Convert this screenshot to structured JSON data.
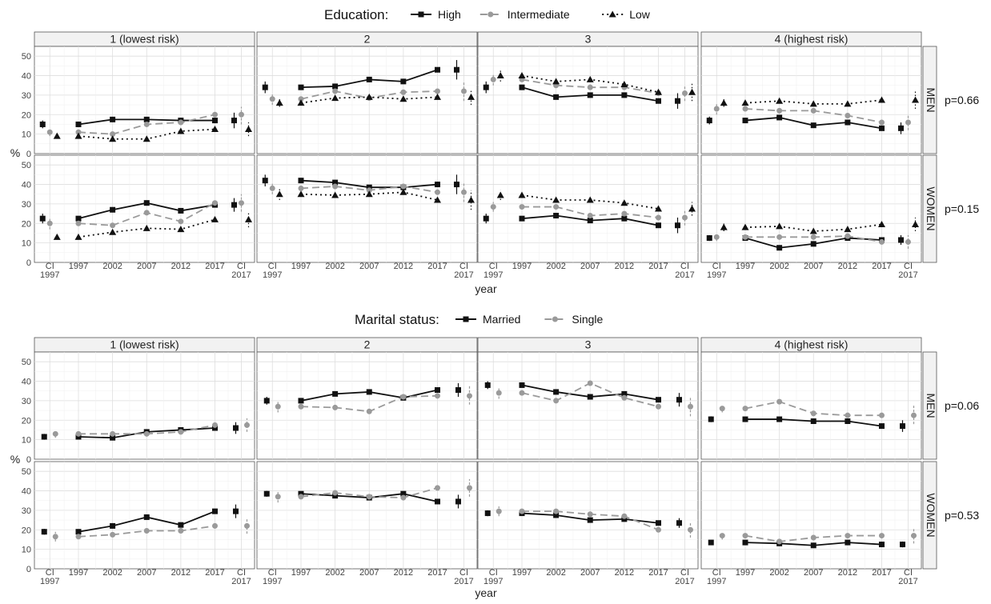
{
  "figures": [
    {
      "legend_title": "Education:",
      "legend_items": [
        "High",
        "Intermediate",
        "Low"
      ],
      "xlabel": "year",
      "ylabel": "%",
      "column_titles": [
        "1 (lowest risk)",
        "2",
        "3",
        "4 (highest risk)"
      ],
      "row_labels": [
        "MEN",
        "WOMEN"
      ],
      "p_values": [
        "p=0.66",
        "p=0.15"
      ]
    },
    {
      "legend_title": "Marital status:",
      "legend_items": [
        "Married",
        "Single"
      ],
      "xlabel": "year",
      "ylabel": "%",
      "column_titles": [
        "1 (lowest risk)",
        "2",
        "3",
        "4 (highest risk)"
      ],
      "row_labels": [
        "MEN",
        "WOMEN"
      ],
      "p_values": [
        "p=0.06",
        "p=0.53"
      ]
    }
  ],
  "axis": {
    "x_ticks": [
      "CI\n1997",
      "1997",
      "2002",
      "2007",
      "2012",
      "2017",
      "CI\n2017"
    ],
    "y_ticks": [
      "0",
      "10",
      "20",
      "30",
      "40",
      "50"
    ],
    "ylim": [
      0,
      55
    ]
  },
  "chart_data": [
    {
      "type": "line",
      "title": "Education",
      "facets": {
        "columns": [
          "1 (lowest risk)",
          "2",
          "3",
          "4 (highest risk)"
        ],
        "rows": [
          "MEN",
          "WOMEN"
        ]
      },
      "x": [
        1997,
        2002,
        2007,
        2012,
        2017
      ],
      "series_names": [
        "High",
        "Intermediate",
        "Low"
      ],
      "series_colors": [
        "#111111",
        "#9a9a9a",
        "#111111"
      ],
      "series_markers": [
        "square",
        "circle",
        "triangle"
      ],
      "series_dash": [
        "",
        "9,5",
        "2,4"
      ],
      "panels": [
        {
          "row": 0,
          "col": 0,
          "series": [
            {
              "values": [
                15,
                17.5,
                17.5,
                17,
                17
              ],
              "ci1997": [
                15,
                13,
                17
              ],
              "ci2017": [
                17,
                13,
                21
              ]
            },
            {
              "values": [
                11,
                10,
                15,
                16,
                20
              ],
              "ci1997": [
                11,
                9,
                13
              ],
              "ci2017": [
                20,
                15,
                24
              ]
            },
            {
              "values": [
                9,
                7.5,
                7.5,
                11.5,
                12.5
              ],
              "ci1997": [
                9,
                8,
                10
              ],
              "ci2017": [
                12.5,
                9,
                16
              ]
            }
          ]
        },
        {
          "row": 0,
          "col": 1,
          "series": [
            {
              "values": [
                34,
                34.5,
                38,
                37,
                43
              ],
              "ci1997": [
                34,
                31,
                37
              ],
              "ci2017": [
                43,
                38,
                48
              ]
            },
            {
              "values": [
                28,
                32,
                28.5,
                31.5,
                32
              ],
              "ci1997": [
                28,
                25,
                31
              ],
              "ci2017": [
                32,
                27,
                37
              ]
            },
            {
              "values": [
                26,
                28.5,
                29,
                28,
                29
              ],
              "ci1997": [
                26,
                24,
                28
              ],
              "ci2017": [
                29,
                25,
                33
              ]
            }
          ]
        },
        {
          "row": 0,
          "col": 2,
          "series": [
            {
              "values": [
                34,
                29,
                30,
                30,
                27
              ],
              "ci1997": [
                34,
                31,
                37
              ],
              "ci2017": [
                27,
                23,
                31
              ]
            },
            {
              "values": [
                38,
                35,
                34,
                34,
                31
              ],
              "ci1997": [
                38,
                35,
                41
              ],
              "ci2017": [
                31,
                27,
                35
              ]
            },
            {
              "values": [
                40,
                37,
                38,
                35.5,
                31.5
              ],
              "ci1997": [
                40,
                37,
                43
              ],
              "ci2017": [
                31.5,
                27,
                36
              ]
            }
          ]
        },
        {
          "row": 0,
          "col": 3,
          "series": [
            {
              "values": [
                17,
                18.5,
                14.5,
                16,
                13
              ],
              "ci1997": [
                17,
                15,
                19
              ],
              "ci2017": [
                13,
                10,
                16
              ]
            },
            {
              "values": [
                23,
                22,
                22,
                19.5,
                16
              ],
              "ci1997": [
                23,
                20,
                26
              ],
              "ci2017": [
                16,
                12,
                20
              ]
            },
            {
              "values": [
                26,
                27,
                25.5,
                25.5,
                27.5
              ],
              "ci1997": [
                26,
                24,
                28
              ],
              "ci2017": [
                27.5,
                23,
                32
              ]
            }
          ]
        },
        {
          "row": 1,
          "col": 0,
          "series": [
            {
              "values": [
                22.5,
                27,
                30.5,
                26.5,
                29.5
              ],
              "ci1997": [
                22.5,
                20,
                25
              ],
              "ci2017": [
                29.5,
                26,
                33
              ]
            },
            {
              "values": [
                20,
                19,
                25.5,
                21,
                30.5
              ],
              "ci1997": [
                20,
                17,
                23
              ],
              "ci2017": [
                30.5,
                26,
                35
              ]
            },
            {
              "values": [
                13,
                15.5,
                17.5,
                17,
                22
              ],
              "ci1997": [
                13,
                12,
                14
              ],
              "ci2017": [
                22,
                18,
                26
              ]
            }
          ]
        },
        {
          "row": 1,
          "col": 1,
          "series": [
            {
              "values": [
                42,
                41,
                38.5,
                38.5,
                40
              ],
              "ci1997": [
                42,
                39,
                45
              ],
              "ci2017": [
                40,
                35,
                45
              ]
            },
            {
              "values": [
                38,
                39,
                37,
                39,
                36
              ],
              "ci1997": [
                38,
                35,
                41
              ],
              "ci2017": [
                36,
                31,
                41
              ]
            },
            {
              "values": [
                35,
                34.5,
                35,
                36,
                32
              ],
              "ci1997": [
                35,
                32,
                38
              ],
              "ci2017": [
                32,
                27,
                37
              ]
            }
          ]
        },
        {
          "row": 1,
          "col": 2,
          "series": [
            {
              "values": [
                22.5,
                24,
                21.5,
                22.5,
                19
              ],
              "ci1997": [
                22.5,
                20,
                25
              ],
              "ci2017": [
                19,
                15,
                23
              ]
            },
            {
              "values": [
                28.5,
                28.5,
                24,
                25,
                23
              ],
              "ci1997": [
                28.5,
                26,
                31
              ],
              "ci2017": [
                23,
                19,
                27
              ]
            },
            {
              "values": [
                34.5,
                32,
                32,
                30.5,
                27.5
              ],
              "ci1997": [
                34.5,
                32,
                37
              ],
              "ci2017": [
                27.5,
                24,
                31
              ]
            }
          ]
        },
        {
          "row": 1,
          "col": 3,
          "series": [
            {
              "values": [
                12.5,
                7.5,
                9.5,
                12.5,
                11.5
              ],
              "ci1997": [
                12.5,
                11,
                14
              ],
              "ci2017": [
                11.5,
                9,
                14
              ]
            },
            {
              "values": [
                13,
                13,
                13,
                13.5,
                10.5
              ],
              "ci1997": [
                13,
                11,
                15
              ],
              "ci2017": [
                10.5,
                7,
                14
              ]
            },
            {
              "values": [
                18,
                18.5,
                16,
                17,
                19.5
              ],
              "ci1997": [
                18,
                16,
                20
              ],
              "ci2017": [
                19.5,
                16,
                23
              ]
            }
          ]
        }
      ]
    },
    {
      "type": "line",
      "title": "Marital status",
      "facets": {
        "columns": [
          "1 (lowest risk)",
          "2",
          "3",
          "4 (highest risk)"
        ],
        "rows": [
          "MEN",
          "WOMEN"
        ]
      },
      "x": [
        1997,
        2002,
        2007,
        2012,
        2017
      ],
      "series_names": [
        "Married",
        "Single"
      ],
      "series_colors": [
        "#111111",
        "#9a9a9a"
      ],
      "series_markers": [
        "square",
        "circle"
      ],
      "series_dash": [
        "",
        "9,5"
      ],
      "panels": [
        {
          "row": 0,
          "col": 0,
          "series": [
            {
              "values": [
                11.5,
                11,
                14,
                15,
                16
              ],
              "ci1997": [
                11.5,
                10,
                13
              ],
              "ci2017": [
                16,
                13,
                19
              ]
            },
            {
              "values": [
                13,
                13,
                13,
                14,
                17.5
              ],
              "ci1997": [
                13,
                11,
                15
              ],
              "ci2017": [
                17.5,
                14,
                21
              ]
            }
          ]
        },
        {
          "row": 0,
          "col": 1,
          "series": [
            {
              "values": [
                30,
                33.5,
                34.5,
                31.5,
                35.5
              ],
              "ci1997": [
                30,
                28,
                32
              ],
              "ci2017": [
                35.5,
                32,
                39
              ]
            },
            {
              "values": [
                27,
                26.5,
                24.5,
                32,
                32.5
              ],
              "ci1997": [
                27,
                24,
                30
              ],
              "ci2017": [
                32.5,
                28,
                38
              ]
            }
          ]
        },
        {
          "row": 0,
          "col": 2,
          "series": [
            {
              "values": [
                38,
                34.5,
                32,
                33.5,
                30.5
              ],
              "ci1997": [
                38,
                36,
                40
              ],
              "ci2017": [
                30.5,
                27,
                34
              ]
            },
            {
              "values": [
                34,
                30,
                39,
                31.5,
                27
              ],
              "ci1997": [
                34,
                31,
                37
              ],
              "ci2017": [
                27,
                22,
                32
              ]
            }
          ]
        },
        {
          "row": 0,
          "col": 3,
          "series": [
            {
              "values": [
                20.5,
                20.5,
                19.5,
                19.5,
                17
              ],
              "ci1997": [
                20.5,
                19,
                22
              ],
              "ci2017": [
                17,
                14,
                20
              ]
            },
            {
              "values": [
                26,
                29.5,
                23.5,
                22.5,
                22.5
              ],
              "ci1997": [
                26,
                24,
                28
              ],
              "ci2017": [
                22.5,
                18,
                28
              ]
            }
          ]
        },
        {
          "row": 1,
          "col": 0,
          "series": [
            {
              "values": [
                19,
                22,
                26.5,
                22.5,
                29.5
              ],
              "ci1997": [
                19,
                17.5,
                20.5
              ],
              "ci2017": [
                29.5,
                26,
                33
              ]
            },
            {
              "values": [
                16.5,
                17.5,
                19.5,
                19.5,
                22
              ],
              "ci1997": [
                16.5,
                14,
                19
              ],
              "ci2017": [
                22,
                18,
                26
              ]
            }
          ]
        },
        {
          "row": 1,
          "col": 1,
          "series": [
            {
              "values": [
                38.5,
                37.5,
                36.5,
                38.5,
                34.5
              ],
              "ci1997": [
                38.5,
                37,
                40
              ],
              "ci2017": [
                34.5,
                31,
                38
              ]
            },
            {
              "values": [
                37,
                39,
                37,
                36.5,
                41.5
              ],
              "ci1997": [
                37,
                34,
                40
              ],
              "ci2017": [
                41.5,
                37,
                46
              ]
            }
          ]
        },
        {
          "row": 1,
          "col": 2,
          "series": [
            {
              "values": [
                28.5,
                27.5,
                25,
                25.5,
                23.5
              ],
              "ci1997": [
                28.5,
                27,
                30
              ],
              "ci2017": [
                23.5,
                21,
                26
              ]
            },
            {
              "values": [
                29.5,
                29.5,
                28,
                27,
                20
              ],
              "ci1997": [
                29.5,
                27,
                32
              ],
              "ci2017": [
                20,
                16,
                24
              ]
            }
          ]
        },
        {
          "row": 1,
          "col": 3,
          "series": [
            {
              "values": [
                13.5,
                13,
                12,
                13.5,
                12.5
              ],
              "ci1997": [
                13.5,
                12.5,
                14.5
              ],
              "ci2017": [
                12.5,
                11,
                14
              ]
            },
            {
              "values": [
                17,
                14,
                16,
                17,
                17
              ],
              "ci1997": [
                17,
                15,
                19
              ],
              "ci2017": [
                17,
                13,
                21
              ]
            }
          ]
        }
      ]
    }
  ]
}
